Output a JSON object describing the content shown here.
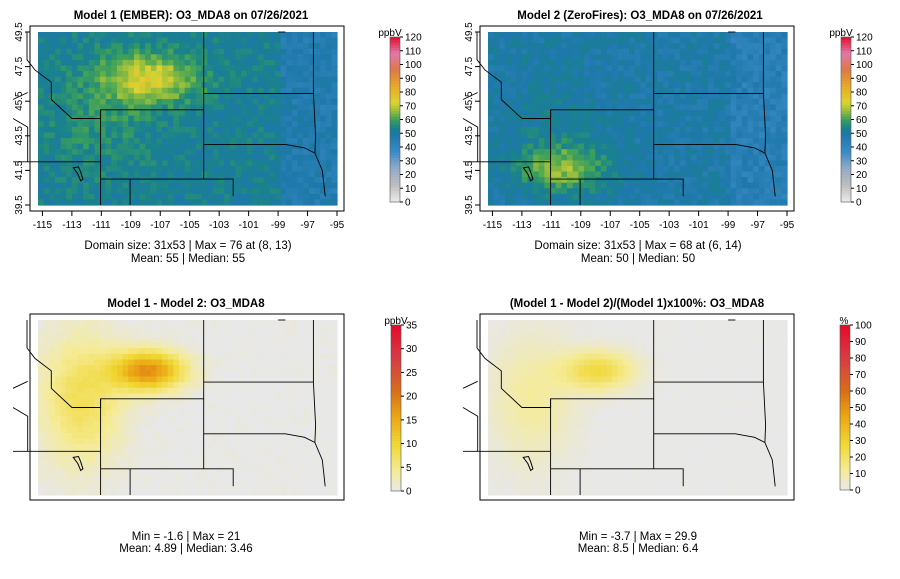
{
  "chart_data": [
    {
      "type": "heatmap",
      "title": "Model 1 (EMBER): O3_MDA8 on 07/26/2021",
      "legend_title": "ppbV",
      "legend_ticks": [
        "0",
        "10",
        "20",
        "30",
        "40",
        "50",
        "60",
        "70",
        "80",
        "90",
        "100",
        "110",
        "120"
      ],
      "legend_range": [
        0,
        120
      ],
      "palette": "ozone",
      "x_ticks": [
        "-115",
        "-113",
        "-111",
        "-109",
        "-107",
        "-105",
        "-103",
        "-101",
        "-99",
        "-97",
        "-95"
      ],
      "y_ticks": [
        "39.5",
        "41.5",
        "43.5",
        "45.5",
        "47.5",
        "49.5"
      ],
      "stats_line1": "Domain size: 31x53 | Max = 76 at (8, 13)",
      "stats_line2": "Mean: 55 |  Median: 55",
      "grid_rows": 31,
      "grid_cols": 53,
      "base": 52,
      "amp": 1.0,
      "hotspot": [
        -107.6,
        46.8,
        74
      ]
    },
    {
      "type": "heatmap",
      "title": "Model 2 (ZeroFires): O3_MDA8 on 07/26/2021",
      "legend_title": "ppbV",
      "legend_ticks": [
        "0",
        "10",
        "20",
        "30",
        "40",
        "50",
        "60",
        "70",
        "80",
        "90",
        "100",
        "110",
        "120"
      ],
      "legend_range": [
        0,
        120
      ],
      "palette": "ozone",
      "x_ticks": [
        "-115",
        "-113",
        "-111",
        "-109",
        "-107",
        "-105",
        "-103",
        "-101",
        "-99",
        "-97",
        "-95"
      ],
      "y_ticks": [
        "39.5",
        "41.5",
        "43.5",
        "45.5",
        "47.5",
        "49.5"
      ],
      "stats_line1": "Domain size: 31x53 | Max = 68 at (6, 14)",
      "stats_line2": "Mean: 50 |  Median: 50",
      "grid_rows": 31,
      "grid_cols": 53,
      "base": 48,
      "amp": 0.7,
      "hotspot": [
        -110.2,
        41.6,
        66
      ]
    },
    {
      "type": "heatmap",
      "title": "Model 1 - Model 2: O3_MDA8",
      "legend_title": "ppbV",
      "legend_ticks": [
        "0",
        "5",
        "10",
        "15",
        "20",
        "25",
        "30",
        "35"
      ],
      "legend_range": [
        0,
        35
      ],
      "palette": "diff",
      "x_ticks": [],
      "y_ticks": [],
      "stats_line1": "Min = -1.6 | Max = 21",
      "stats_line2": "Mean: 4.89 |  Median: 3.46",
      "grid_rows": 31,
      "grid_cols": 53,
      "base": 0,
      "amp": 1.0,
      "hotspot": [
        -107.8,
        46.6,
        21
      ]
    },
    {
      "type": "heatmap",
      "title": "(Model 1 - Model 2)/(Model 1)x100%: O3_MDA8",
      "legend_title": "%",
      "legend_ticks": [
        "0",
        "10",
        "20",
        "30",
        "40",
        "50",
        "60",
        "70",
        "80",
        "90",
        "100"
      ],
      "legend_range": [
        0,
        100
      ],
      "palette": "diff",
      "x_ticks": [],
      "y_ticks": [],
      "stats_line1": "Min = -3.7 | Max = 29.9",
      "stats_line2": "Mean: 8.5 |  Median: 6.4",
      "grid_rows": 31,
      "grid_cols": 53,
      "base": 0,
      "amp": 1.0,
      "hotspot": [
        -107.8,
        46.6,
        29.9
      ]
    }
  ]
}
